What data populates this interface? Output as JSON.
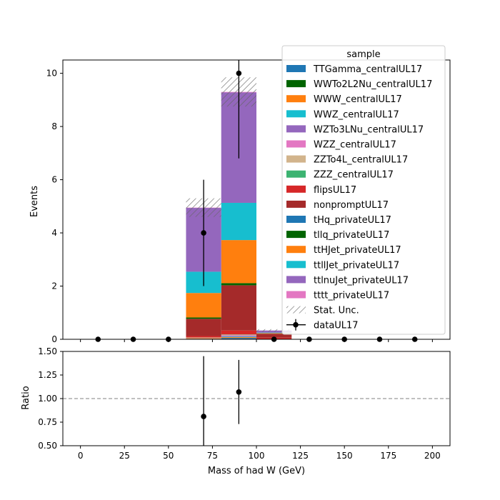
{
  "chart_data": [
    {
      "type": "bar",
      "stacked": true,
      "ylabel": "Events",
      "xlim": [
        -10,
        210
      ],
      "ylim": [
        0,
        10.5
      ],
      "yticks": [
        0,
        2,
        4,
        6,
        8,
        10
      ],
      "grid": false,
      "legend_title": "sample",
      "legend_position": "upper-right",
      "bin_edges": [
        0,
        20,
        40,
        60,
        80,
        100,
        120,
        140,
        160,
        180,
        200
      ],
      "series": [
        {
          "name": "TTGamma_centralUL17",
          "color": "#1f77b4",
          "values": [
            0,
            0,
            0,
            0.02,
            0.05,
            0.01,
            0,
            0,
            0,
            0
          ]
        },
        {
          "name": "WWTo2L2Nu_centralUL17",
          "color": "#006400",
          "values": [
            0,
            0,
            0,
            0,
            0,
            0,
            0,
            0,
            0,
            0
          ]
        },
        {
          "name": "WWW_centralUL17",
          "color": "#ff7f0e",
          "values": [
            0,
            0,
            0,
            0.02,
            0.03,
            0,
            0,
            0,
            0,
            0
          ]
        },
        {
          "name": "WWZ_centralUL17",
          "color": "#17becf",
          "values": [
            0,
            0,
            0,
            0,
            0.02,
            0,
            0,
            0,
            0,
            0
          ]
        },
        {
          "name": "WZTo3LNu_centralUL17",
          "color": "#9467bd",
          "values": [
            0,
            0,
            0,
            0.01,
            0.03,
            0,
            0,
            0,
            0,
            0
          ]
        },
        {
          "name": "WZZ_centralUL17",
          "color": "#e377c2",
          "values": [
            0,
            0,
            0,
            0,
            0.02,
            0,
            0,
            0,
            0,
            0
          ]
        },
        {
          "name": "ZZTo4L_centralUL17",
          "color": "#d2b48c",
          "values": [
            0,
            0,
            0,
            0.02,
            0.02,
            0,
            0,
            0,
            0,
            0
          ]
        },
        {
          "name": "ZZZ_centralUL17",
          "color": "#3cb371",
          "values": [
            0,
            0,
            0,
            0,
            0.01,
            0,
            0,
            0,
            0,
            0
          ]
        },
        {
          "name": "flipsUL17",
          "color": "#d62728",
          "values": [
            0,
            0,
            0,
            0.05,
            0.15,
            0.05,
            0,
            0,
            0,
            0
          ]
        },
        {
          "name": "nonpromptUL17",
          "color": "#a52a2a",
          "values": [
            0,
            0,
            0,
            0.65,
            1.7,
            0.15,
            0,
            0,
            0,
            0
          ]
        },
        {
          "name": "tHq_privateUL17",
          "color": "#1f77b4",
          "values": [
            0,
            0,
            0,
            0,
            0,
            0,
            0,
            0,
            0,
            0
          ]
        },
        {
          "name": "tllq_privateUL17",
          "color": "#006400",
          "values": [
            0,
            0,
            0,
            0.05,
            0.08,
            0,
            0,
            0,
            0,
            0
          ]
        },
        {
          "name": "ttHJet_privateUL17",
          "color": "#ff7f0e",
          "values": [
            0,
            0,
            0,
            0.92,
            1.62,
            0.02,
            0,
            0,
            0,
            0
          ]
        },
        {
          "name": "ttllJet_privateUL17",
          "color": "#17becf",
          "values": [
            0,
            0,
            0,
            0.8,
            1.4,
            0.02,
            0,
            0,
            0,
            0
          ]
        },
        {
          "name": "ttlnuJet_privateUL17",
          "color": "#9467bd",
          "values": [
            0,
            0,
            0,
            2.4,
            4.15,
            0.08,
            0,
            0,
            0,
            0
          ]
        },
        {
          "name": "tttt_privateUL17",
          "color": "#e377c2",
          "values": [
            0,
            0,
            0,
            0.01,
            0.02,
            0,
            0,
            0,
            0,
            0
          ]
        }
      ],
      "stat_unc": {
        "name": "Stat. Unc.",
        "values": [
          0,
          0,
          0,
          0.35,
          0.55,
          0.05,
          0,
          0,
          0,
          0
        ]
      },
      "data": {
        "name": "dataUL17",
        "x": [
          10,
          30,
          50,
          70,
          90,
          110,
          130,
          150,
          170,
          190
        ],
        "y": [
          0,
          0,
          0,
          4,
          10,
          0,
          0,
          0,
          0,
          0
        ],
        "yerr": [
          0,
          0,
          0,
          2.0,
          3.2,
          0,
          0,
          0,
          0,
          0
        ]
      }
    },
    {
      "type": "scatter",
      "xlabel": "Mass of had W (GeV)",
      "ylabel": "Ratio",
      "xlim": [
        -10,
        210
      ],
      "ylim": [
        0.5,
        1.5
      ],
      "xticks": [
        0,
        25,
        50,
        75,
        100,
        125,
        150,
        175,
        200
      ],
      "yticks": [
        0.5,
        0.75,
        1.0,
        1.25,
        1.5
      ],
      "reference_line": 1.0,
      "x": [
        70,
        90
      ],
      "y": [
        0.81,
        1.07
      ],
      "yerr": [
        0.64,
        0.34
      ]
    }
  ],
  "labels": {
    "main_ylabel": "Events",
    "ratio_ylabel": "Ratio",
    "xlabel": "Mass of had W (GeV)",
    "legend_title": "sample",
    "main_yticks": [
      "0",
      "2",
      "4",
      "6",
      "8",
      "10"
    ],
    "ratio_yticks": [
      "0.50",
      "0.75",
      "1.00",
      "1.25",
      "1.50"
    ],
    "xticks": [
      "0",
      "25",
      "50",
      "75",
      "100",
      "125",
      "150",
      "175",
      "200"
    ]
  }
}
